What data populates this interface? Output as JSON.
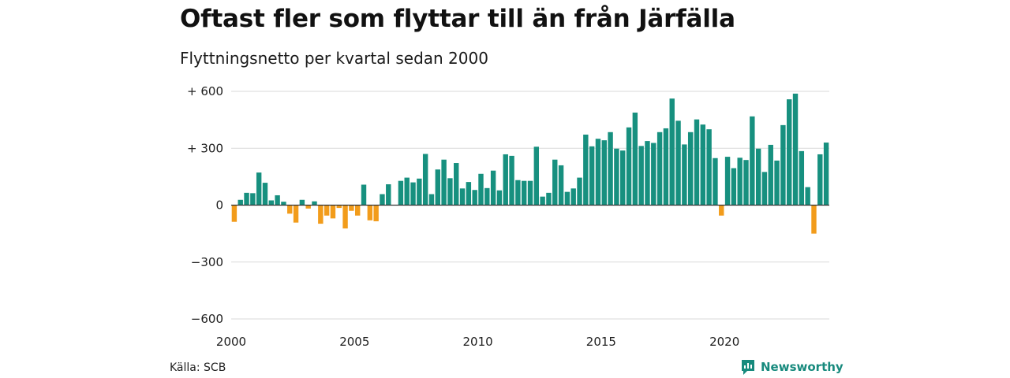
{
  "title": "Oftast fler som flyttar till än från Järfälla",
  "subtitle": "Flyttningsnetto per kvartal sedan 2000",
  "source": "Källa: SCB",
  "brand": {
    "name": "Newsworthy",
    "icon": "newsworthy-logo-icon"
  },
  "colors": {
    "positive": "#17907f",
    "negative": "#f29c1b",
    "grid": "#d9d9d9",
    "brand": "#178a7d"
  },
  "chart_data": {
    "type": "bar",
    "ylim": [
      -600,
      600
    ],
    "y_ticks": [
      {
        "value": 600,
        "label": "+ 600"
      },
      {
        "value": 300,
        "label": "+ 300"
      },
      {
        "value": 0,
        "label": "0"
      },
      {
        "value": -300,
        "label": "−300"
      },
      {
        "value": -600,
        "label": "−600"
      }
    ],
    "x_ticks": [
      "2000",
      "2005",
      "2010",
      "2015",
      "2020"
    ],
    "start_year": 2000,
    "grid": true,
    "legend": "none",
    "values": [
      -88,
      28,
      65,
      63,
      172,
      118,
      25,
      52,
      18,
      -45,
      -92,
      28,
      -18,
      20,
      -98,
      -55,
      -70,
      -15,
      -123,
      -30,
      -55,
      108,
      -80,
      -85,
      58,
      110,
      0,
      128,
      145,
      120,
      140,
      270,
      58,
      188,
      240,
      142,
      222,
      88,
      122,
      80,
      165,
      90,
      182,
      78,
      268,
      260,
      132,
      128,
      128,
      308,
      45,
      65,
      240,
      210,
      70,
      88,
      145,
      372,
      310,
      350,
      342,
      385,
      298,
      288,
      410,
      488,
      312,
      338,
      328,
      385,
      405,
      562,
      445,
      320,
      385,
      452,
      425,
      400,
      248,
      -55,
      255,
      195,
      250,
      238,
      468,
      298,
      175,
      318,
      235,
      422,
      558,
      588,
      285,
      95,
      -150,
      268,
      330
    ]
  }
}
